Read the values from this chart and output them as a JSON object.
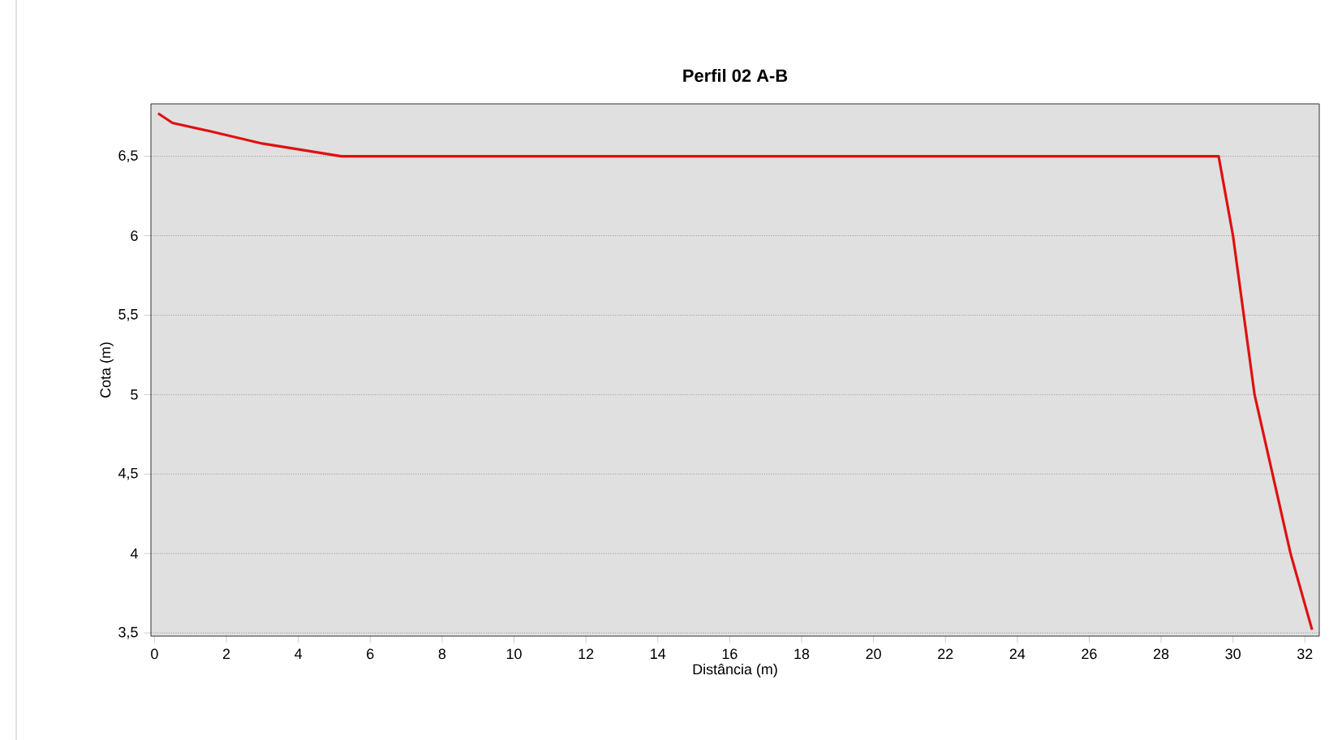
{
  "chart_data": {
    "type": "line",
    "title": "Perfil 02 A-B",
    "xlabel": "Distância (m)",
    "ylabel": "Cota (m)",
    "x": [
      0.1,
      0.5,
      1.5,
      3,
      5.2,
      29.6,
      30,
      30.3,
      30.6,
      31.1,
      31.6,
      32.2
    ],
    "series": [
      {
        "color": "#e01010",
        "values": [
          6.77,
          6.71,
          6.66,
          6.58,
          6.5,
          6.5,
          6,
          5.5,
          5,
          4.5,
          4,
          3.52
        ]
      }
    ],
    "xlim": [
      -0.1,
      32.4
    ],
    "ylim": [
      3.48,
      6.83
    ],
    "xticks": [
      0,
      2,
      4,
      6,
      8,
      10,
      12,
      14,
      16,
      18,
      20,
      22,
      24,
      26,
      28,
      30,
      32
    ],
    "yticks": [
      {
        "value": 3.5,
        "label": "3,5"
      },
      4,
      {
        "value": 4.5,
        "label": "4,5"
      },
      5,
      {
        "value": 5.5,
        "label": "5,5"
      },
      6,
      {
        "value": 6.5,
        "label": "6,5"
      }
    ],
    "grid": "y",
    "marker": "none",
    "line_style": "solid"
  }
}
